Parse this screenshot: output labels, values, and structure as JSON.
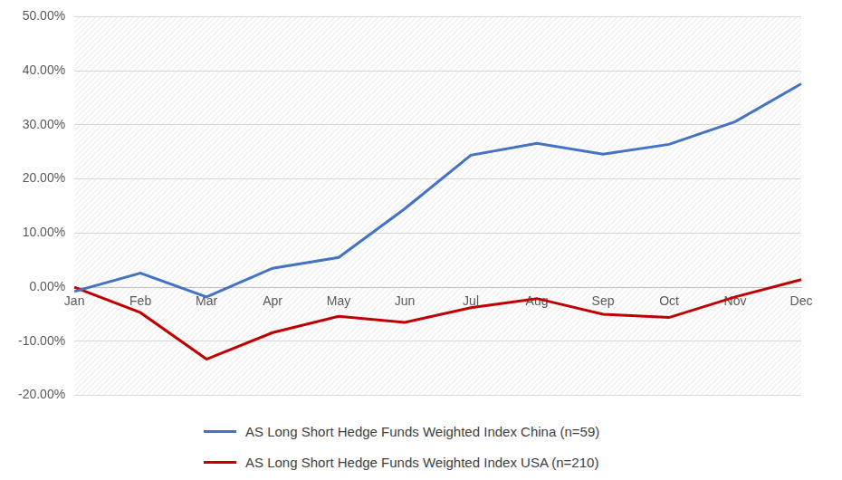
{
  "chart_data": {
    "type": "line",
    "categories": [
      "Jan",
      "Feb",
      "Mar",
      "Apr",
      "May",
      "Jun",
      "Jul",
      "Aug",
      "Sep",
      "Oct",
      "Nov",
      "Dec"
    ],
    "series": [
      {
        "name": "AS Long Short Hedge Funds Weighted Index China (n=59)",
        "color": "#4472c4",
        "values": [
          -0.8,
          2.6,
          -1.8,
          3.5,
          5.5,
          14.5,
          24.4,
          26.6,
          24.6,
          26.4,
          30.6,
          37.6
        ]
      },
      {
        "name": "AS Long Short Hedge Funds Weighted Index USA (n=210)",
        "color": "#c00000",
        "values": [
          0,
          -4.7,
          -13.3,
          -8.4,
          -5.4,
          -6.5,
          -3.8,
          -2.1,
          -5.0,
          -5.6,
          -1.8,
          1.4
        ]
      }
    ],
    "ylim": [
      -20,
      50
    ],
    "yticks": [
      {
        "value": -20,
        "label": "-20.00%"
      },
      {
        "value": -10,
        "label": "-10.00%"
      },
      {
        "value": 0,
        "label": "0.00%"
      },
      {
        "value": 10,
        "label": "10.00%"
      },
      {
        "value": 20,
        "label": "20.00%"
      },
      {
        "value": 30,
        "label": "30.00%"
      },
      {
        "value": 40,
        "label": "40.00%"
      },
      {
        "value": 50,
        "label": "50.00%"
      }
    ],
    "grid": true,
    "legend": "bottom"
  }
}
